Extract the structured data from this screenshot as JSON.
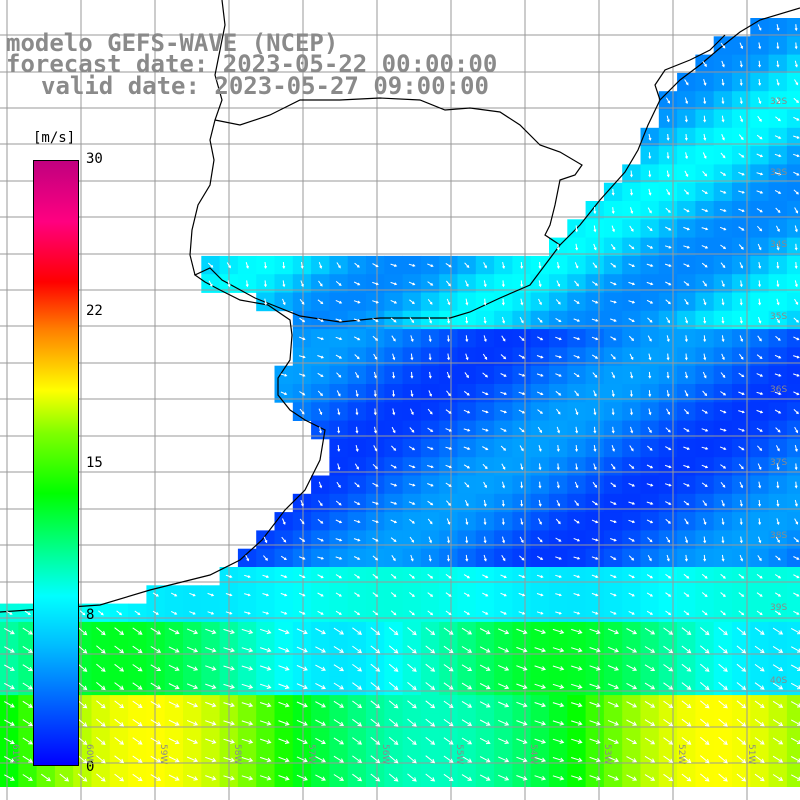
{
  "title": {
    "line1": "modelo GEFS-WAVE (NCEP)",
    "line2": "forecast date: 2023-05-22 00:00:00",
    "line3": "valid date: 2023-05-27 09:00:00"
  },
  "colorbar": {
    "unit": "[m/s]",
    "ticks": [
      "30",
      "22",
      "15",
      "8",
      "0"
    ],
    "colors": [
      "#0000ff",
      "#00bfff",
      "#00ffff",
      "#00ff00",
      "#ffff00",
      "#ff0000",
      "#c0007f"
    ]
  },
  "lon_labels": [
    "61W",
    "60W",
    "59W",
    "58W",
    "57W",
    "56W",
    "55W",
    "54W",
    "53W",
    "52W",
    "51W"
  ],
  "lat_labels": [
    "32S",
    "33S",
    "34S",
    "35S",
    "36S",
    "37S",
    "38S",
    "39S",
    "40S"
  ]
}
